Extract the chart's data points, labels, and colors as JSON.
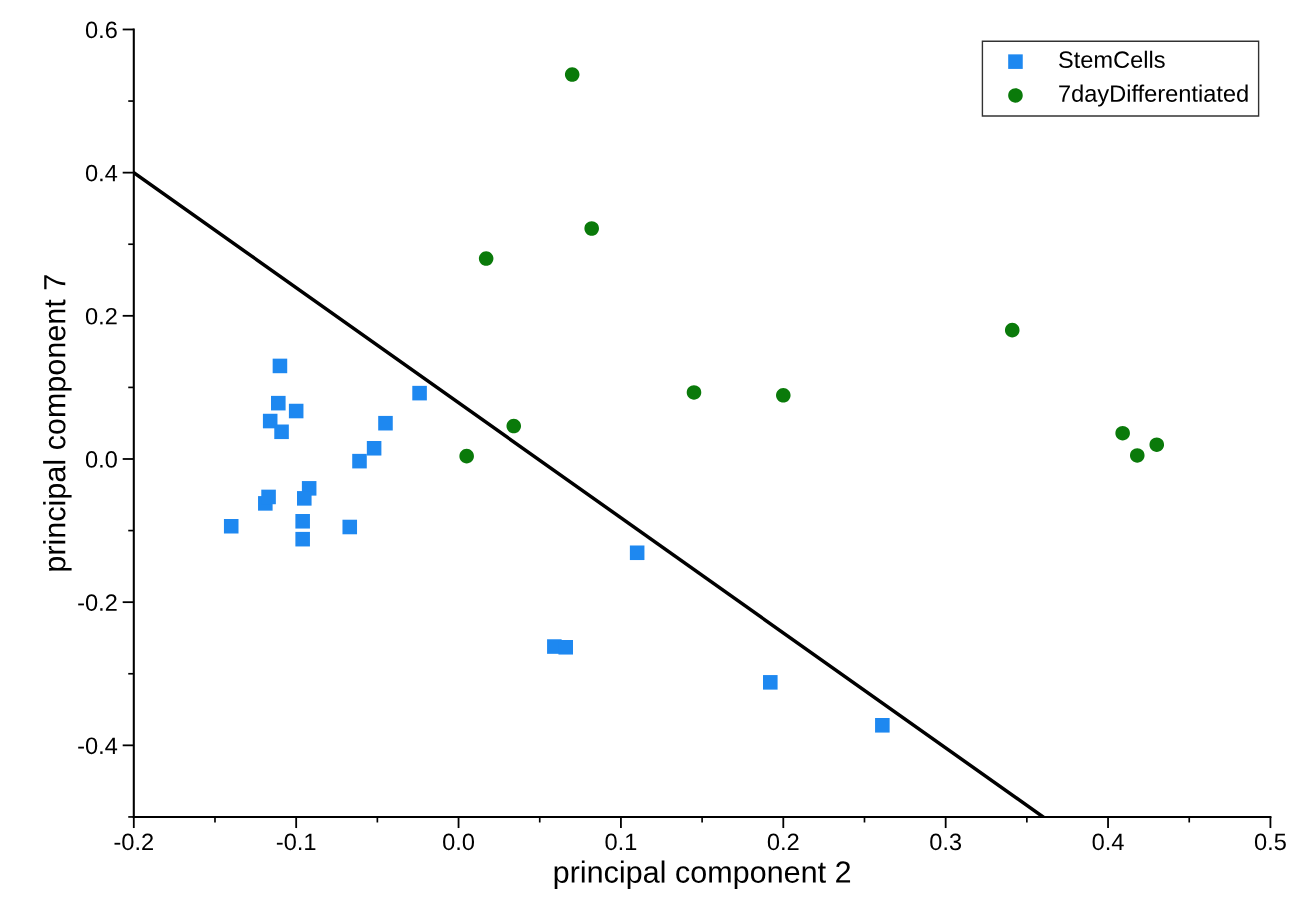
{
  "chart_data": {
    "type": "scatter",
    "xlabel": "principal component 2",
    "ylabel": "principal component 7",
    "xlim": [
      -0.2,
      0.5
    ],
    "ylim": [
      -0.5,
      0.6
    ],
    "xticks": [
      -0.2,
      -0.1,
      {
        "value": 0,
        "label": "0.0"
      },
      0.1,
      0.2,
      0.3,
      0.4,
      0.5
    ],
    "yticks": [
      -0.4,
      -0.2,
      {
        "value": 0,
        "label": "0.0"
      },
      0.2,
      0.4,
      0.6
    ],
    "grid": false,
    "legend": "top right",
    "series": [
      {
        "name": "StemCells",
        "color": "#1e88f0",
        "marker": "square",
        "x": [
          -0.11,
          -0.111,
          -0.1,
          -0.116,
          -0.109,
          -0.024,
          -0.045,
          -0.052,
          -0.061,
          -0.092,
          -0.095,
          -0.119,
          -0.117,
          -0.096,
          -0.096,
          -0.14,
          -0.067,
          0.11,
          0.059,
          0.066,
          0.192,
          0.261
        ],
        "values": [
          0.13,
          0.078,
          0.067,
          0.053,
          0.038,
          0.092,
          0.05,
          0.015,
          -0.003,
          -0.041,
          -0.055,
          -0.062,
          -0.053,
          -0.087,
          -0.112,
          -0.094,
          -0.095,
          -0.131,
          -0.262,
          -0.263,
          -0.312,
          -0.372
        ]
      },
      {
        "name": "7dayDifferentiated",
        "color": "#0a7a0a",
        "marker": "circle",
        "x": [
          0.07,
          0.082,
          0.017,
          0.341,
          0.145,
          0.2,
          0.034,
          0.005,
          0.409,
          0.418,
          0.43
        ],
        "values": [
          0.537,
          0.322,
          0.28,
          0.18,
          0.093,
          0.089,
          0.046,
          0.004,
          0.036,
          0.005,
          0.02
        ]
      },
      {
        "type": "line",
        "color": "#000000",
        "marker": "none",
        "line_style": "solid",
        "x": [
          -0.2,
          0.36
        ],
        "values": [
          0.4,
          -0.5
        ]
      }
    ]
  }
}
